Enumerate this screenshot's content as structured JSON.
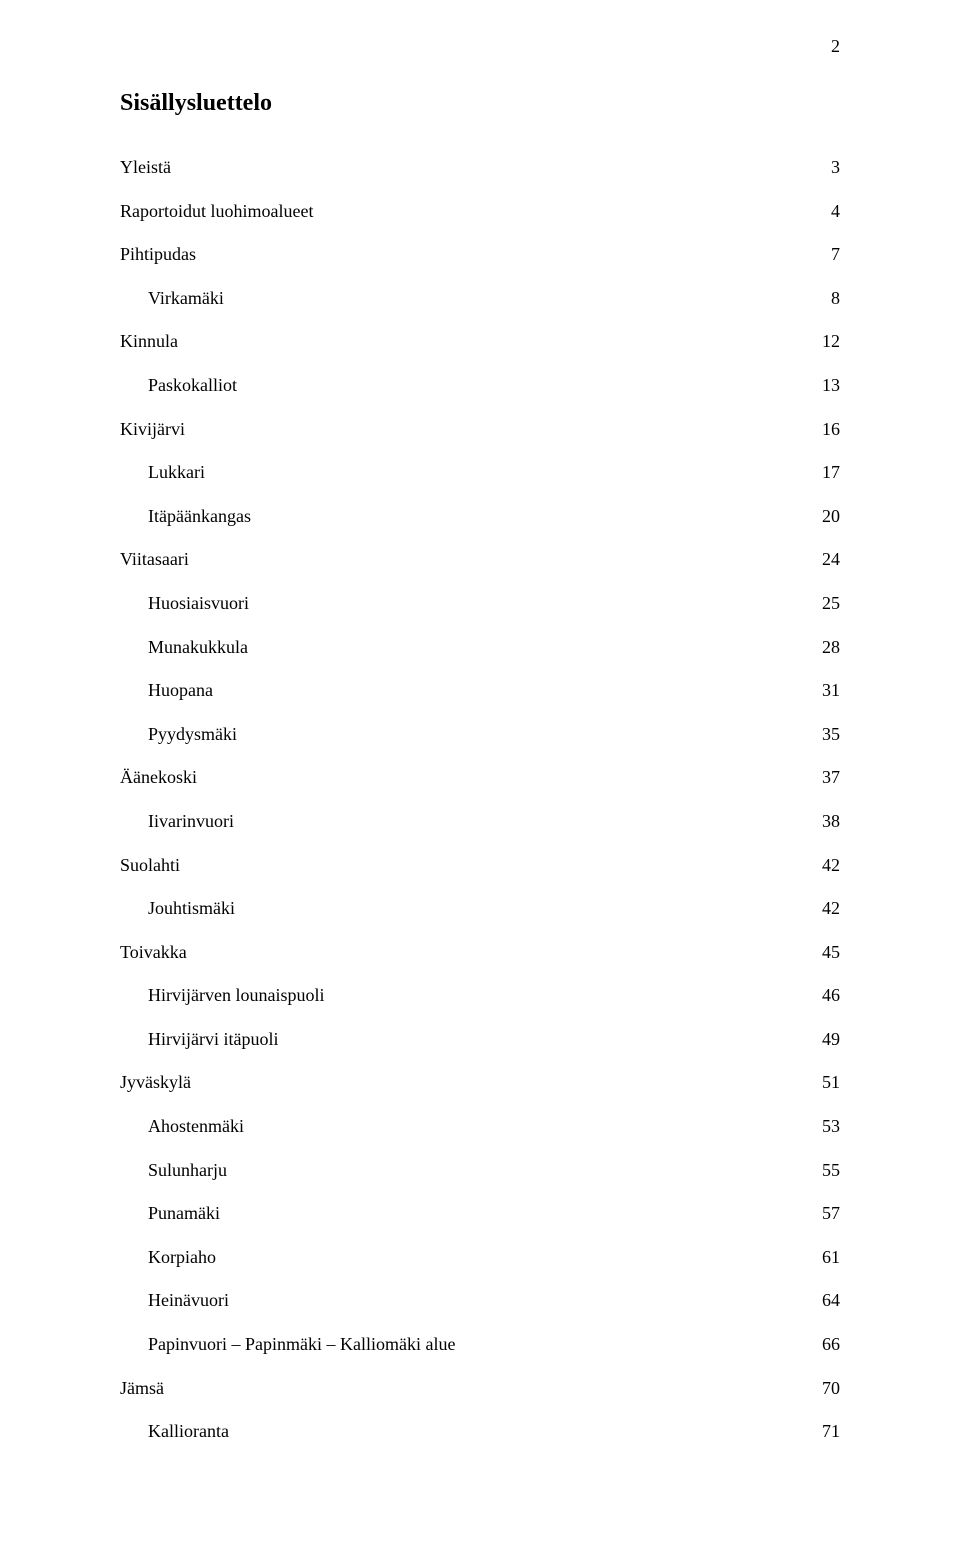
{
  "page_number": "2",
  "title": "Sisällysluettelo",
  "font": {
    "family": "Times New Roman",
    "title_size_pt": 18,
    "entry_size_pt": 14,
    "color": "#000000",
    "background": "#ffffff"
  },
  "toc": [
    {
      "label": "Yleistä",
      "page": "3",
      "indent": 0
    },
    {
      "label": "Raportoidut luohimoalueet",
      "page": "4",
      "indent": 0
    },
    {
      "label": "Pihtipudas",
      "page": "7",
      "indent": 0
    },
    {
      "label": "Virkamäki",
      "page": "8",
      "indent": 1
    },
    {
      "label": "Kinnula",
      "page": "12",
      "indent": 0
    },
    {
      "label": "Paskokalliot",
      "page": "13",
      "indent": 1
    },
    {
      "label": "Kivijärvi",
      "page": "16",
      "indent": 0
    },
    {
      "label": "Lukkari",
      "page": "17",
      "indent": 1
    },
    {
      "label": "Itäpäänkangas",
      "page": "20",
      "indent": 1
    },
    {
      "label": "Viitasaari",
      "page": "24",
      "indent": 0
    },
    {
      "label": "Huosiaisvuori",
      "page": "25",
      "indent": 1
    },
    {
      "label": "Munakukkula",
      "page": "28",
      "indent": 1
    },
    {
      "label": "Huopana",
      "page": "31",
      "indent": 1
    },
    {
      "label": "Pyydysmäki",
      "page": "35",
      "indent": 1
    },
    {
      "label": "Äänekoski",
      "page": "37",
      "indent": 0
    },
    {
      "label": "Iivarinvuori",
      "page": "38",
      "indent": 1
    },
    {
      "label": "Suolahti",
      "page": "42",
      "indent": 0
    },
    {
      "label": "Jouhtismäki",
      "page": "42",
      "indent": 1
    },
    {
      "label": "Toivakka",
      "page": "45",
      "indent": 0
    },
    {
      "label": "Hirvijärven lounaispuoli",
      "page": "46",
      "indent": 1
    },
    {
      "label": "Hirvijärvi itäpuoli",
      "page": "49",
      "indent": 1
    },
    {
      "label": "Jyväskylä",
      "page": "51",
      "indent": 0
    },
    {
      "label": "Ahostenmäki",
      "page": "53",
      "indent": 1
    },
    {
      "label": "Sulunharju",
      "page": "55",
      "indent": 1
    },
    {
      "label": "Punamäki",
      "page": "57",
      "indent": 1
    },
    {
      "label": "Korpiaho",
      "page": "61",
      "indent": 1
    },
    {
      "label": "Heinävuori",
      "page": "64",
      "indent": 1
    },
    {
      "label": "Papinvuori – Papinmäki – Kalliomäki alue",
      "page": "66",
      "indent": 1
    },
    {
      "label": "Jämsä",
      "page": "70",
      "indent": 0
    },
    {
      "label": "Kallioranta",
      "page": "71",
      "indent": 1
    }
  ]
}
